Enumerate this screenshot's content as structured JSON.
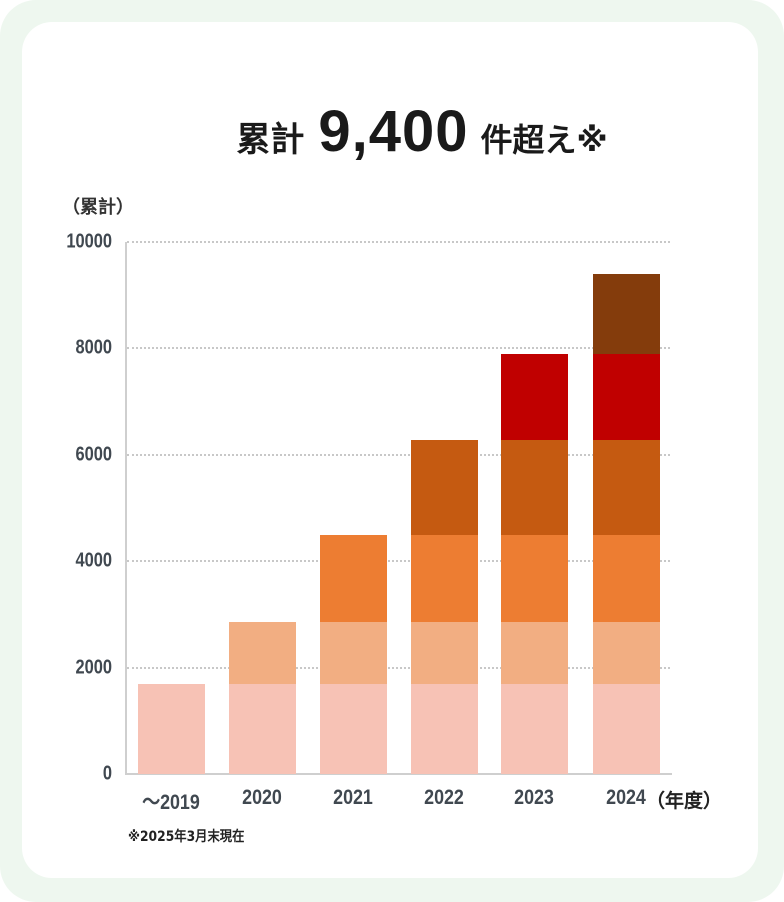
{
  "headline": {
    "prefix": "累計",
    "number": "9,400",
    "suffix": "件超え※"
  },
  "footnote": "※2025年3月末現在",
  "chart_data": {
    "type": "bar",
    "stacked": true,
    "title": "累計 9,400件超え※",
    "ylabel": "（累計）",
    "xlabel": "（年度）",
    "ylim": [
      0,
      10000
    ],
    "yticks": [
      "0",
      "2000",
      "4000",
      "6000",
      "8000",
      "10000"
    ],
    "grid": true,
    "legend": null,
    "categories": [
      "～2019",
      "2020",
      "2021",
      "2022",
      "2023",
      "2024"
    ],
    "totals": [
      1700,
      2850,
      4500,
      6280,
      7900,
      9400
    ],
    "series": [
      {
        "name": "～2019",
        "color": "#f7c2b5",
        "values": [
          1700,
          1700,
          1700,
          1700,
          1700,
          1700
        ]
      },
      {
        "name": "2020",
        "color": "#f2ae82",
        "values": [
          0,
          1150,
          1150,
          1150,
          1150,
          1150
        ]
      },
      {
        "name": "2021",
        "color": "#ed7d32",
        "values": [
          0,
          0,
          1650,
          1650,
          1650,
          1650
        ]
      },
      {
        "name": "2022",
        "color": "#c55a11",
        "values": [
          0,
          0,
          0,
          1780,
          1780,
          1780
        ]
      },
      {
        "name": "2023",
        "color": "#c00000",
        "values": [
          0,
          0,
          0,
          0,
          1620,
          1620
        ]
      },
      {
        "name": "2024",
        "color": "#843c0c",
        "values": [
          0,
          0,
          0,
          0,
          0,
          1500
        ]
      }
    ]
  }
}
